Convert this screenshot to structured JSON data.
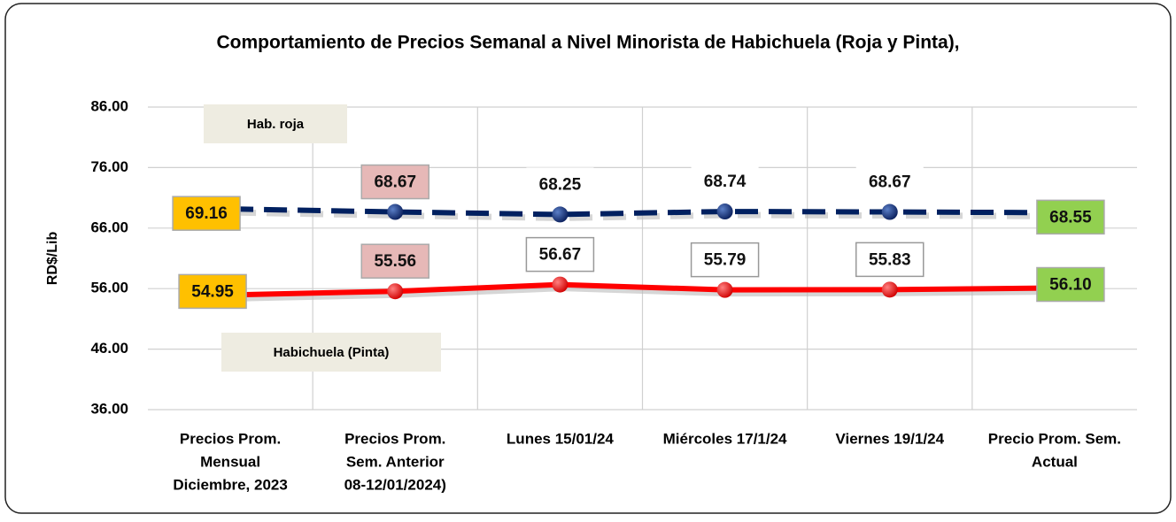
{
  "chart_data": {
    "type": "line",
    "title": "Comportamiento de Precios Semanal a Nivel Minorista de Habichuela (Roja  y Pinta),",
    "y_label": "RD$/Lib",
    "categories": [
      [
        "Precios Prom.",
        "Mensual",
        "Diciembre, 2023"
      ],
      [
        "Precios Prom.",
        "Sem. Anterior",
        "08-12/01/2024)"
      ],
      [
        "Lunes  15/01/24"
      ],
      [
        "Miércoles 17/1/24"
      ],
      [
        "Viernes 19/1/24"
      ],
      [
        "Precio Prom. Sem.",
        "Actual"
      ]
    ],
    "series": [
      {
        "name": "Hab. roja",
        "color": "#002060",
        "dashed": true,
        "values": [
          69.16,
          68.67,
          68.25,
          68.74,
          68.67,
          68.55
        ],
        "value_labels": [
          "69.16",
          "68.67",
          "68.25",
          "68.74",
          "68.67",
          "68.55"
        ]
      },
      {
        "name": "Habichuela (Pinta)",
        "color": "#ff0000",
        "dashed": false,
        "values": [
          54.95,
          55.56,
          56.67,
          55.79,
          55.83,
          56.1
        ],
        "value_labels": [
          "54.95",
          "55.56",
          "56.67",
          "55.79",
          "55.83",
          "56.10"
        ]
      }
    ],
    "ylim": [
      36,
      86
    ],
    "yticks": [
      {
        "value": 36,
        "label": "36.00"
      },
      {
        "value": 46,
        "label": "46.00"
      },
      {
        "value": 56,
        "label": "56.00"
      },
      {
        "value": 66,
        "label": "66.00"
      },
      {
        "value": 76,
        "label": "76.00"
      },
      {
        "value": 86,
        "label": "86.00"
      }
    ],
    "grid": true
  }
}
